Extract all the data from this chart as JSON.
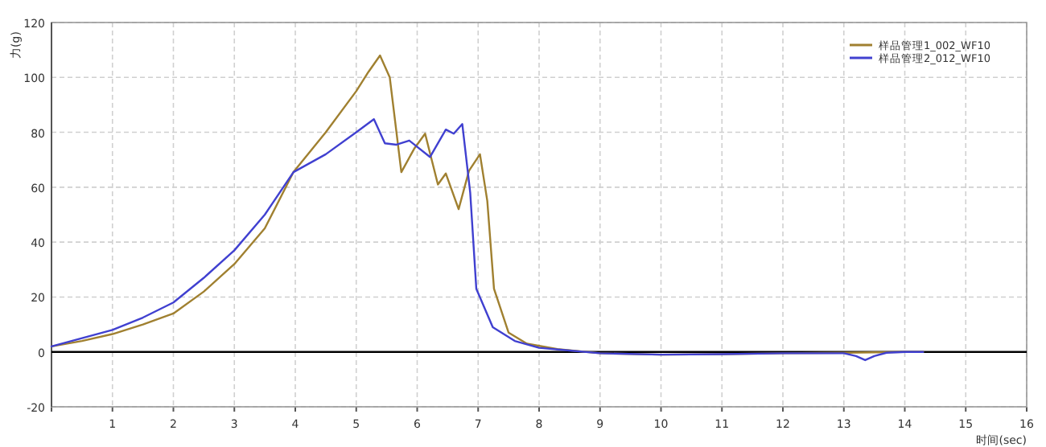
{
  "chart_data": {
    "type": "line",
    "xlabel": "时间(sec)",
    "ylabel": "力(g)",
    "xlim": [
      0,
      16
    ],
    "xticks": [
      {
        "value": 0,
        "label": null
      },
      1,
      2,
      3,
      4,
      5,
      6,
      7,
      8,
      9,
      10,
      11,
      12,
      13,
      14,
      15,
      16
    ],
    "ylim": [
      -20,
      120
    ],
    "yticks": [
      -20,
      0,
      20,
      40,
      60,
      80,
      100,
      120
    ],
    "grid": true,
    "legend": "top right",
    "marker": "none",
    "line_style": "solid",
    "ref_lines": [
      {
        "axis": "y",
        "value": 0,
        "color": "#000000"
      }
    ],
    "series": [
      {
        "name": "样品管理1_002_WF10",
        "color": "#a08030",
        "x": [
          0,
          0.5,
          1,
          1.5,
          2,
          2.5,
          3,
          3.5,
          3.97,
          4.5,
          5,
          5.2,
          5.39,
          5.55,
          5.74,
          5.95,
          6.13,
          6.34,
          6.47,
          6.68,
          6.85,
          7.03,
          7.15,
          7.26,
          7.5,
          7.8,
          8.3,
          9,
          10,
          11,
          12,
          13,
          14,
          14.3
        ],
        "values": [
          2,
          4,
          6.5,
          10,
          14,
          22,
          32,
          45,
          65.5,
          80,
          95,
          102,
          108,
          100,
          65.5,
          74,
          79.5,
          61,
          65,
          52,
          66,
          72,
          55,
          23,
          7,
          3,
          1,
          -0.5,
          -1,
          -0.8,
          -0.5,
          -0.3,
          0,
          0
        ]
      },
      {
        "name": "样品管理2_012_WF10",
        "color": "#4040d0",
        "x": [
          0,
          0.5,
          1,
          1.5,
          2,
          2.5,
          3,
          3.5,
          3.97,
          4.5,
          5,
          5.29,
          5.47,
          5.66,
          5.87,
          6.21,
          6.47,
          6.6,
          6.74,
          6.87,
          6.97,
          7.24,
          7.6,
          8,
          8.5,
          9,
          10,
          11,
          12,
          13,
          13.2,
          13.35,
          13.5,
          13.7,
          14,
          14.3
        ],
        "values": [
          2,
          5,
          8,
          12.5,
          18,
          27,
          37,
          50,
          65.5,
          72,
          80,
          84.8,
          76,
          75.5,
          77,
          71,
          81,
          79.5,
          83,
          58,
          23,
          9,
          4,
          1.5,
          0.5,
          -0.5,
          -1,
          -0.8,
          -0.5,
          -0.5,
          -1.5,
          -3,
          -1.5,
          -0.3,
          0,
          0
        ]
      }
    ]
  }
}
